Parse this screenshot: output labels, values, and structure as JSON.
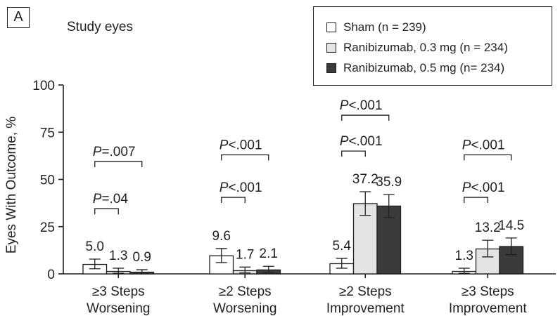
{
  "panel_label": "A",
  "subtitle": "Study eyes",
  "legend": [
    {
      "label": "Sham (n = 239)",
      "color": "#ffffff"
    },
    {
      "label": "Ranibizumab, 0.3 mg (n = 234)",
      "color": "#e3e4e5"
    },
    {
      "label": "Ranibizumab, 0.5 mg (n= 234)",
      "color": "#3b3b3d"
    }
  ],
  "chart_data": {
    "type": "bar",
    "ylabel": "Eyes With Outcome, %",
    "ylim": [
      0,
      100
    ],
    "yticks": [
      0,
      25,
      50,
      75,
      100
    ],
    "categories": [
      [
        "≥3 Steps",
        "Worsening"
      ],
      [
        "≥2 Steps",
        "Worsening"
      ],
      [
        "≥2 Steps",
        "Improvement"
      ],
      [
        "≥3 Steps",
        "Improvement"
      ]
    ],
    "series": [
      {
        "name": "Sham (n = 239)",
        "values": [
          5.0,
          9.6,
          5.4,
          1.3
        ],
        "error": [
          [
            2.7,
            7.8
          ],
          [
            6.0,
            13.4
          ],
          [
            3.0,
            8.2
          ],
          [
            0.3,
            3.0
          ]
        ],
        "color": "#ffffff"
      },
      {
        "name": "Ranibizumab, 0.3 mg (n = 234)",
        "values": [
          1.3,
          1.7,
          37.2,
          13.2
        ],
        "error": [
          [
            0.3,
            3.0
          ],
          [
            0.5,
            3.6
          ],
          [
            31.0,
            43.5
          ],
          [
            9.0,
            17.8
          ]
        ],
        "color": "#e3e4e5"
      },
      {
        "name": "Ranibizumab, 0.5 mg (n= 234)",
        "values": [
          0.9,
          2.1,
          35.9,
          14.5
        ],
        "error": [
          [
            0.1,
            2.2
          ],
          [
            0.8,
            4.0
          ],
          [
            29.8,
            42.0
          ],
          [
            10.2,
            19.0
          ]
        ],
        "color": "#3b3b3d"
      }
    ],
    "data_labels": [
      [
        "5.0",
        "9.6",
        "5.4",
        "1.3"
      ],
      [
        "1.3",
        "1.7",
        "37.2",
        "13.2"
      ],
      [
        "0.9",
        "2.1",
        "35.9",
        "14.5"
      ]
    ],
    "comparisons": [
      {
        "group": 0,
        "from": 0,
        "to": 1,
        "y": 34.5,
        "prefix": "P",
        "text": "=.04"
      },
      {
        "group": 0,
        "from": 0,
        "to": 2,
        "y": 59.5,
        "prefix": "P",
        "text": "=.007"
      },
      {
        "group": 1,
        "from": 0,
        "to": 1,
        "y": 40.5,
        "prefix": "P",
        "text": "<.001"
      },
      {
        "group": 1,
        "from": 0,
        "to": 2,
        "y": 63.0,
        "prefix": "P",
        "text": "<.001"
      },
      {
        "group": 2,
        "from": 0,
        "to": 1,
        "y": 65.0,
        "prefix": "P",
        "text": "<.001"
      },
      {
        "group": 2,
        "from": 0,
        "to": 2,
        "y": 84.0,
        "prefix": "P",
        "text": "<.001"
      },
      {
        "group": 3,
        "from": 0,
        "to": 1,
        "y": 40.5,
        "prefix": "P",
        "text": "<.001"
      },
      {
        "group": 3,
        "from": 0,
        "to": 2,
        "y": 63.0,
        "prefix": "P",
        "text": "<.001"
      }
    ],
    "grid": false,
    "legend_position": "top-right"
  }
}
